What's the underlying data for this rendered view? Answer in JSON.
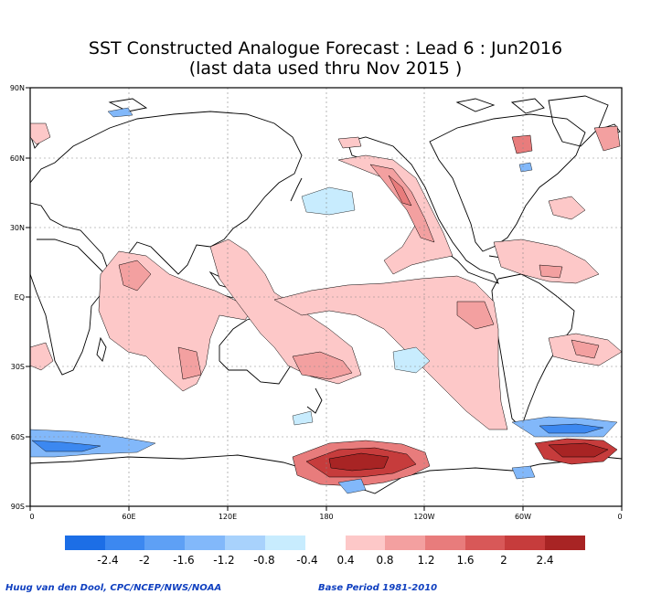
{
  "title": {
    "line1": "SST Constructed Analogue Forecast : Lead 6 : Jun2016",
    "line2": "(last data used thru Nov 2015 )"
  },
  "axes": {
    "lat_labels": [
      "90N",
      "60N",
      "30N",
      "EQ",
      "30S",
      "60S",
      "90S"
    ],
    "lon_labels": [
      "0",
      "60E",
      "120E",
      "180",
      "120W",
      "60W",
      "0"
    ]
  },
  "colorbar": {
    "negative_labels": [
      "-2.4",
      "-2",
      "-1.6",
      "-1.2",
      "-0.8",
      "-0.4"
    ],
    "positive_labels": [
      "0.4",
      "0.8",
      "1.2",
      "1.6",
      "2",
      "2.4"
    ],
    "negative_colors": [
      "#1c6ee6",
      "#3c88f0",
      "#5ea0f5",
      "#82b8fa",
      "#a8d2fc",
      "#c8ecfe"
    ],
    "positive_colors": [
      "#fdc8c8",
      "#f3a0a0",
      "#e87c7c",
      "#d85858",
      "#c63c3c",
      "#a82424"
    ]
  },
  "footer": {
    "credit": "Huug van den Dool, CPC/NCEP/NWS/NOAA",
    "base_period": "Base Period 1981-2010"
  }
}
